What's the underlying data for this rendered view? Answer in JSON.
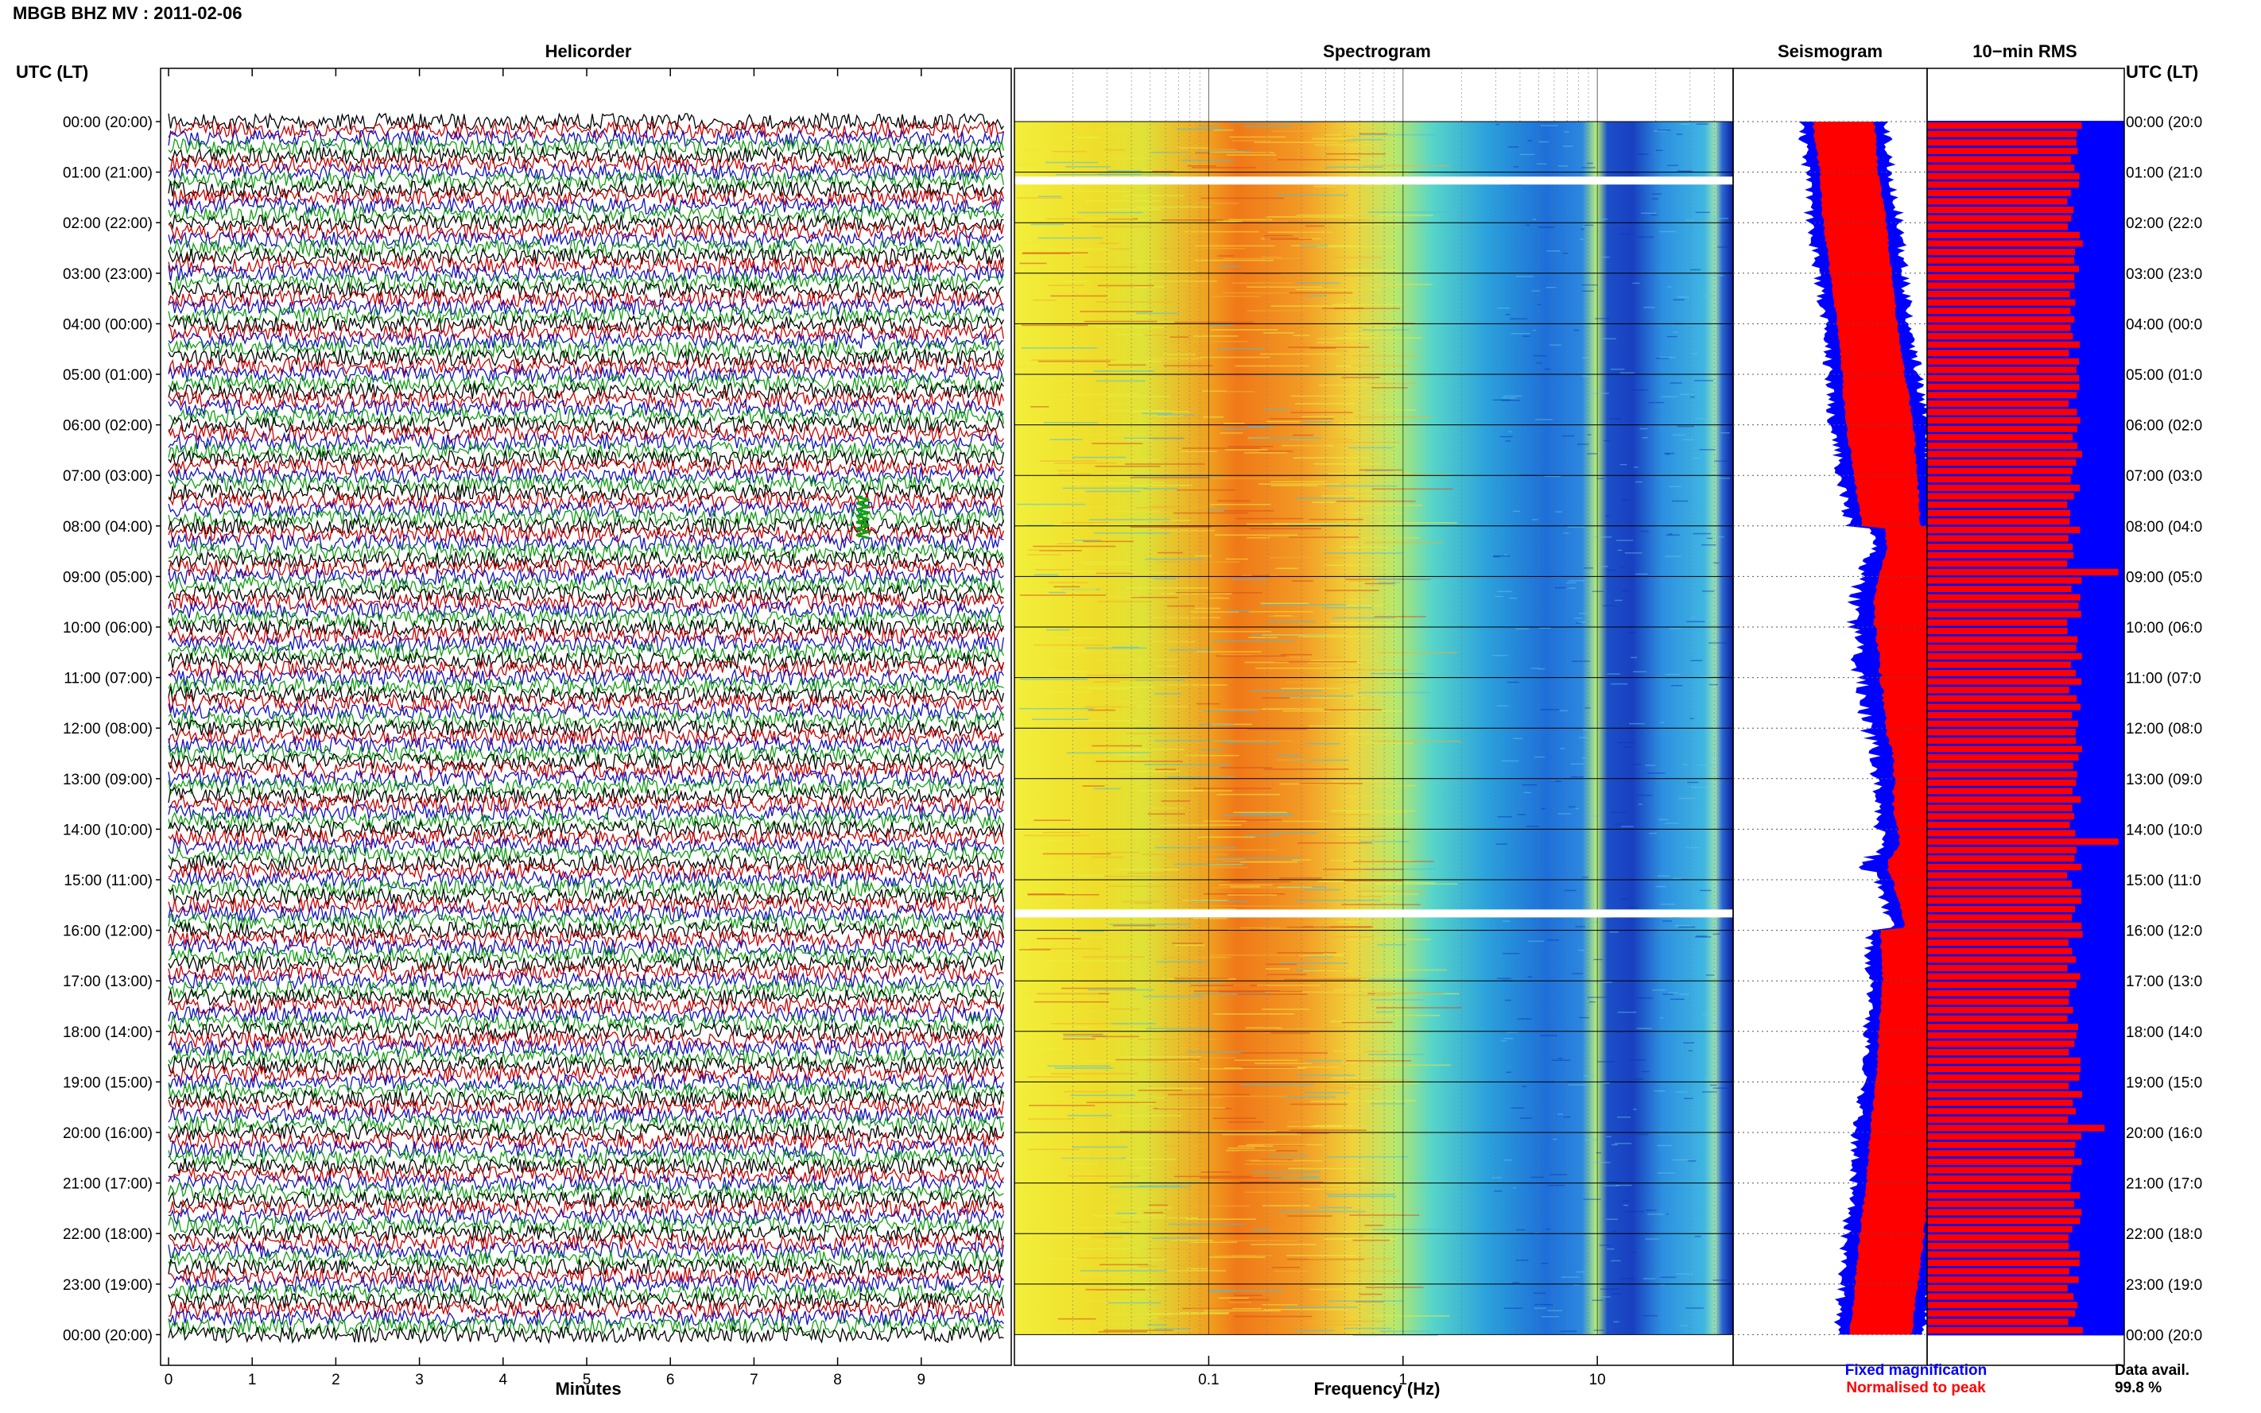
{
  "header": {
    "station_title": "MBGB BHZ MV : 2011-02-06"
  },
  "left_axis_title": "UTC (LT)",
  "right_axis_title": "UTC (LT)",
  "panels": {
    "helicorder": "Helicorder",
    "spectrogram": "Spectrogram",
    "seismogram": "Seismogram",
    "rms": "10−min RMS"
  },
  "time_labels": [
    "00:00 (20:00)",
    "01:00 (21:00)",
    "02:00 (22:00)",
    "03:00 (23:00)",
    "04:00 (00:00)",
    "05:00 (01:00)",
    "06:00 (02:00)",
    "07:00 (03:00)",
    "08:00 (04:00)",
    "09:00 (05:00)",
    "10:00 (06:00)",
    "11:00 (07:00)",
    "12:00 (08:00)",
    "13:00 (09:00)",
    "14:00 (10:00)",
    "15:00 (11:00)",
    "16:00 (12:00)",
    "17:00 (13:00)",
    "18:00 (14:00)",
    "19:00 (15:00)",
    "20:00 (16:00)",
    "21:00 (17:00)",
    "22:00 (18:00)",
    "23:00 (19:00)",
    "00:00 (20:00)"
  ],
  "right_time_labels": [
    "00:00 (20:0",
    "01:00 (21:0",
    "02:00 (22:0",
    "03:00 (23:0",
    "04:00 (00:0",
    "05:00 (01:0",
    "06:00 (02:0",
    "07:00 (03:0",
    "08:00 (04:0",
    "09:00 (05:0",
    "10:00 (06:0",
    "11:00 (07:0",
    "12:00 (08:0",
    "13:00 (09:0",
    "14:00 (10:0",
    "15:00 (11:0",
    "16:00 (12:0",
    "17:00 (13:0",
    "18:00 (14:0",
    "19:00 (15:0",
    "20:00 (16:0",
    "21:00 (17:0",
    "22:00 (18:0",
    "23:00 (19:0",
    "00:00 (20:0"
  ],
  "helicorder_axis": {
    "label": "Minutes",
    "ticks": [
      "0",
      "1",
      "2",
      "3",
      "4",
      "5",
      "6",
      "7",
      "8",
      "9"
    ]
  },
  "spectrogram_axis": {
    "label": "Frequency (Hz)",
    "ticks": [
      "0.1",
      "1",
      "10"
    ]
  },
  "legend": {
    "fixed": "Fixed magnification",
    "normalised": "Normalised to peak"
  },
  "data_availability": {
    "label": "Data avail.",
    "value": "99.8 %"
  },
  "colors": {
    "trace_black": "#000000",
    "trace_red": "#cc0000",
    "trace_blue": "#1010c0",
    "trace_green": "#10a010",
    "fixed": "#0000ff",
    "normalised": "#ff0000",
    "gap": "#ffffff"
  },
  "chart_data": [
    {
      "type": "line",
      "title": "Helicorder",
      "xlabel": "Minutes",
      "ylabel": "UTC (LT)",
      "xlim": [
        0,
        10
      ],
      "rows_per_hour": 6,
      "trace_colors": [
        "black",
        "red",
        "blue",
        "green"
      ],
      "events": [
        {
          "time_utc": "07:50",
          "minute": 8.3
        }
      ]
    },
    {
      "type": "heatmap",
      "title": "Spectrogram",
      "xlabel": "Frequency (Hz)",
      "ylabel": "UTC (LT)",
      "x_scale": "log",
      "xlim": [
        0.01,
        50
      ],
      "data_gaps_utc": [
        "01:10",
        "15:40"
      ]
    },
    {
      "type": "area",
      "title": "Seismogram",
      "ylabel": "UTC (LT)",
      "series": [
        {
          "name": "Fixed magnification",
          "t_hours": [
            0,
            1,
            2,
            3,
            4,
            5,
            6,
            7,
            8,
            8.5,
            9,
            9.5,
            10,
            11,
            12,
            12.5,
            13,
            13.5,
            14,
            14.3,
            14.5,
            14.7,
            15,
            15.5,
            16,
            17,
            18,
            19,
            20,
            21,
            22,
            23,
            24
          ],
          "level": [
            0.6,
            0.58,
            0.62,
            0.6,
            0.58,
            0.62,
            0.66,
            0.62,
            0.58,
            0.62,
            0.8,
            0.95,
            0.98,
            0.94,
            0.9,
            0.8,
            0.78,
            0.82,
            0.75,
            0.7,
            0.85,
            0.98,
            0.85,
            0.7,
            0.6,
            0.55,
            0.57,
            0.58,
            0.62,
            0.6,
            0.64,
            0.62,
            0.6
          ]
        },
        {
          "name": "Normalised to peak",
          "t_hours": [
            0,
            1,
            2,
            3,
            4,
            5,
            6,
            7,
            8,
            8.5,
            9,
            9.5,
            10,
            11,
            12,
            12.5,
            13,
            13.5,
            14,
            14.3,
            14.5,
            14.7,
            15,
            15.5,
            16,
            17,
            18,
            19,
            20,
            21,
            22,
            23,
            24
          ],
          "level": [
            0.42,
            0.4,
            0.43,
            0.42,
            0.41,
            0.43,
            0.46,
            0.43,
            0.4,
            0.43,
            0.56,
            0.66,
            0.68,
            0.65,
            0.62,
            0.55,
            0.54,
            0.57,
            0.52,
            0.48,
            0.59,
            0.68,
            0.59,
            0.48,
            0.42,
            0.38,
            0.4,
            0.4,
            0.43,
            0.42,
            0.44,
            0.43,
            0.42
          ]
        }
      ]
    },
    {
      "type": "bar",
      "title": "10−min RMS",
      "ylabel": "UTC (LT)",
      "bars_per_hour": 6,
      "fixed_level": 1.0,
      "normalised_typical": 0.75,
      "normalised_peaks": [
        {
          "time_utc": "08:50",
          "value": 0.97
        },
        {
          "time_utc": "14:10",
          "value": 0.97
        },
        {
          "time_utc": "19:50",
          "value": 0.9
        }
      ]
    }
  ]
}
